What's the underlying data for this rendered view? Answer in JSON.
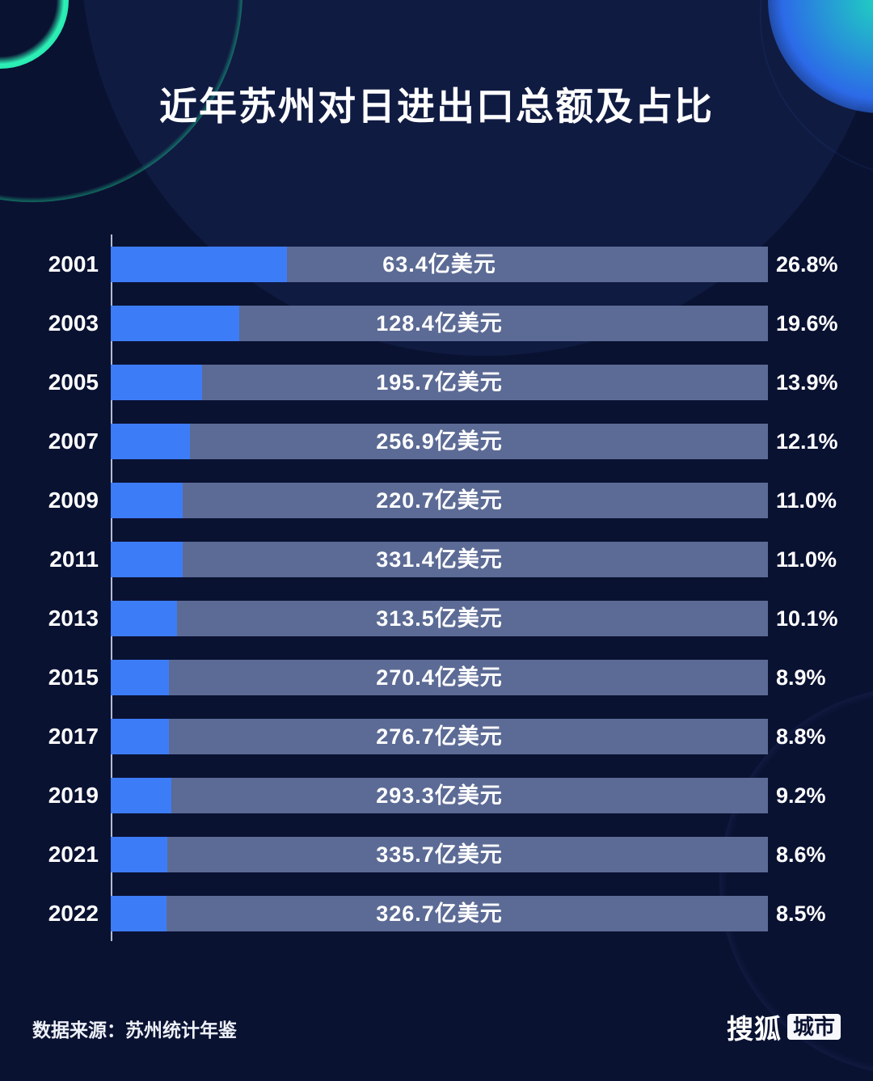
{
  "page": {
    "title": "近年苏州对日进出口总额及占比",
    "source": "数据来源：苏州统计年鉴",
    "logo": {
      "brand": "搜狐",
      "badge": "城市"
    }
  },
  "colors": {
    "background": "#0a1232",
    "bar_track": "#5c6b95",
    "bar_fill": "#3d7cf7",
    "accent_green": "#2ae8b0",
    "accent_blue": "#2e63e8",
    "text": "#ffffff"
  },
  "chart_data": {
    "type": "bar",
    "orientation": "horizontal",
    "title": "近年苏州对日进出口总额及占比",
    "categories": [
      "2001",
      "2003",
      "2005",
      "2007",
      "2009",
      "2011",
      "2013",
      "2015",
      "2017",
      "2019",
      "2021",
      "2022"
    ],
    "series": [
      {
        "name": "对日进出口总额（亿美元）",
        "values": [
          63.4,
          128.4,
          195.7,
          256.9,
          220.7,
          331.4,
          313.5,
          270.4,
          276.7,
          293.3,
          335.7,
          326.7
        ]
      },
      {
        "name": "占比（%）",
        "values": [
          26.8,
          19.6,
          13.9,
          12.1,
          11.0,
          11.0,
          10.1,
          8.9,
          8.8,
          9.2,
          8.6,
          8.5
        ]
      }
    ],
    "value_labels": [
      "63.4亿美元",
      "128.4亿美元",
      "195.7亿美元",
      "256.9亿美元",
      "220.7亿美元",
      "331.4亿美元",
      "313.5亿美元",
      "270.4亿美元",
      "276.7亿美元",
      "293.3亿美元",
      "335.7亿美元",
      "326.7亿美元"
    ],
    "pct_labels": [
      "26.8%",
      "19.6%",
      "13.9%",
      "12.1%",
      "11.0%",
      "11.0%",
      "10.1%",
      "8.9%",
      "8.8%",
      "9.2%",
      "8.6%",
      "8.5%"
    ],
    "bar_fill_rule": "fill width = percentage value of track width",
    "legend": "none",
    "grid": false
  }
}
